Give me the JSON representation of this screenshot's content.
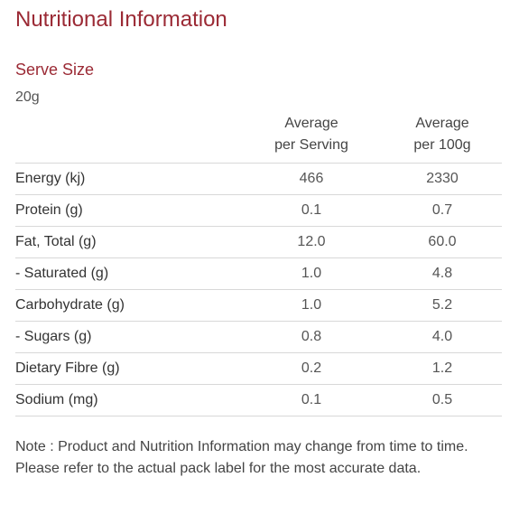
{
  "title": "Nutritional Information",
  "serve_size": {
    "label": "Serve Size",
    "value": "20g"
  },
  "table": {
    "columns": [
      [
        "Average",
        "per Serving"
      ],
      [
        "Average",
        "per 100g"
      ]
    ],
    "rows": [
      [
        "Energy (kj)",
        "466",
        "2330"
      ],
      [
        "Protein (g)",
        "0.1",
        "0.7"
      ],
      [
        "Fat, Total (g)",
        "12.0",
        "60.0"
      ],
      [
        "- Saturated (g)",
        "1.0",
        "4.8"
      ],
      [
        "Carbohydrate (g)",
        "1.0",
        "5.2"
      ],
      [
        "- Sugars (g)",
        "0.8",
        "4.0"
      ],
      [
        "Dietary Fibre (g)",
        "0.2",
        "1.2"
      ],
      [
        "Sodium (mg)",
        "0.1",
        "0.5"
      ]
    ]
  },
  "note": "Note : Product and Nutrition Information may change from time to time. Please refer to the actual pack label for the most accurate data."
}
